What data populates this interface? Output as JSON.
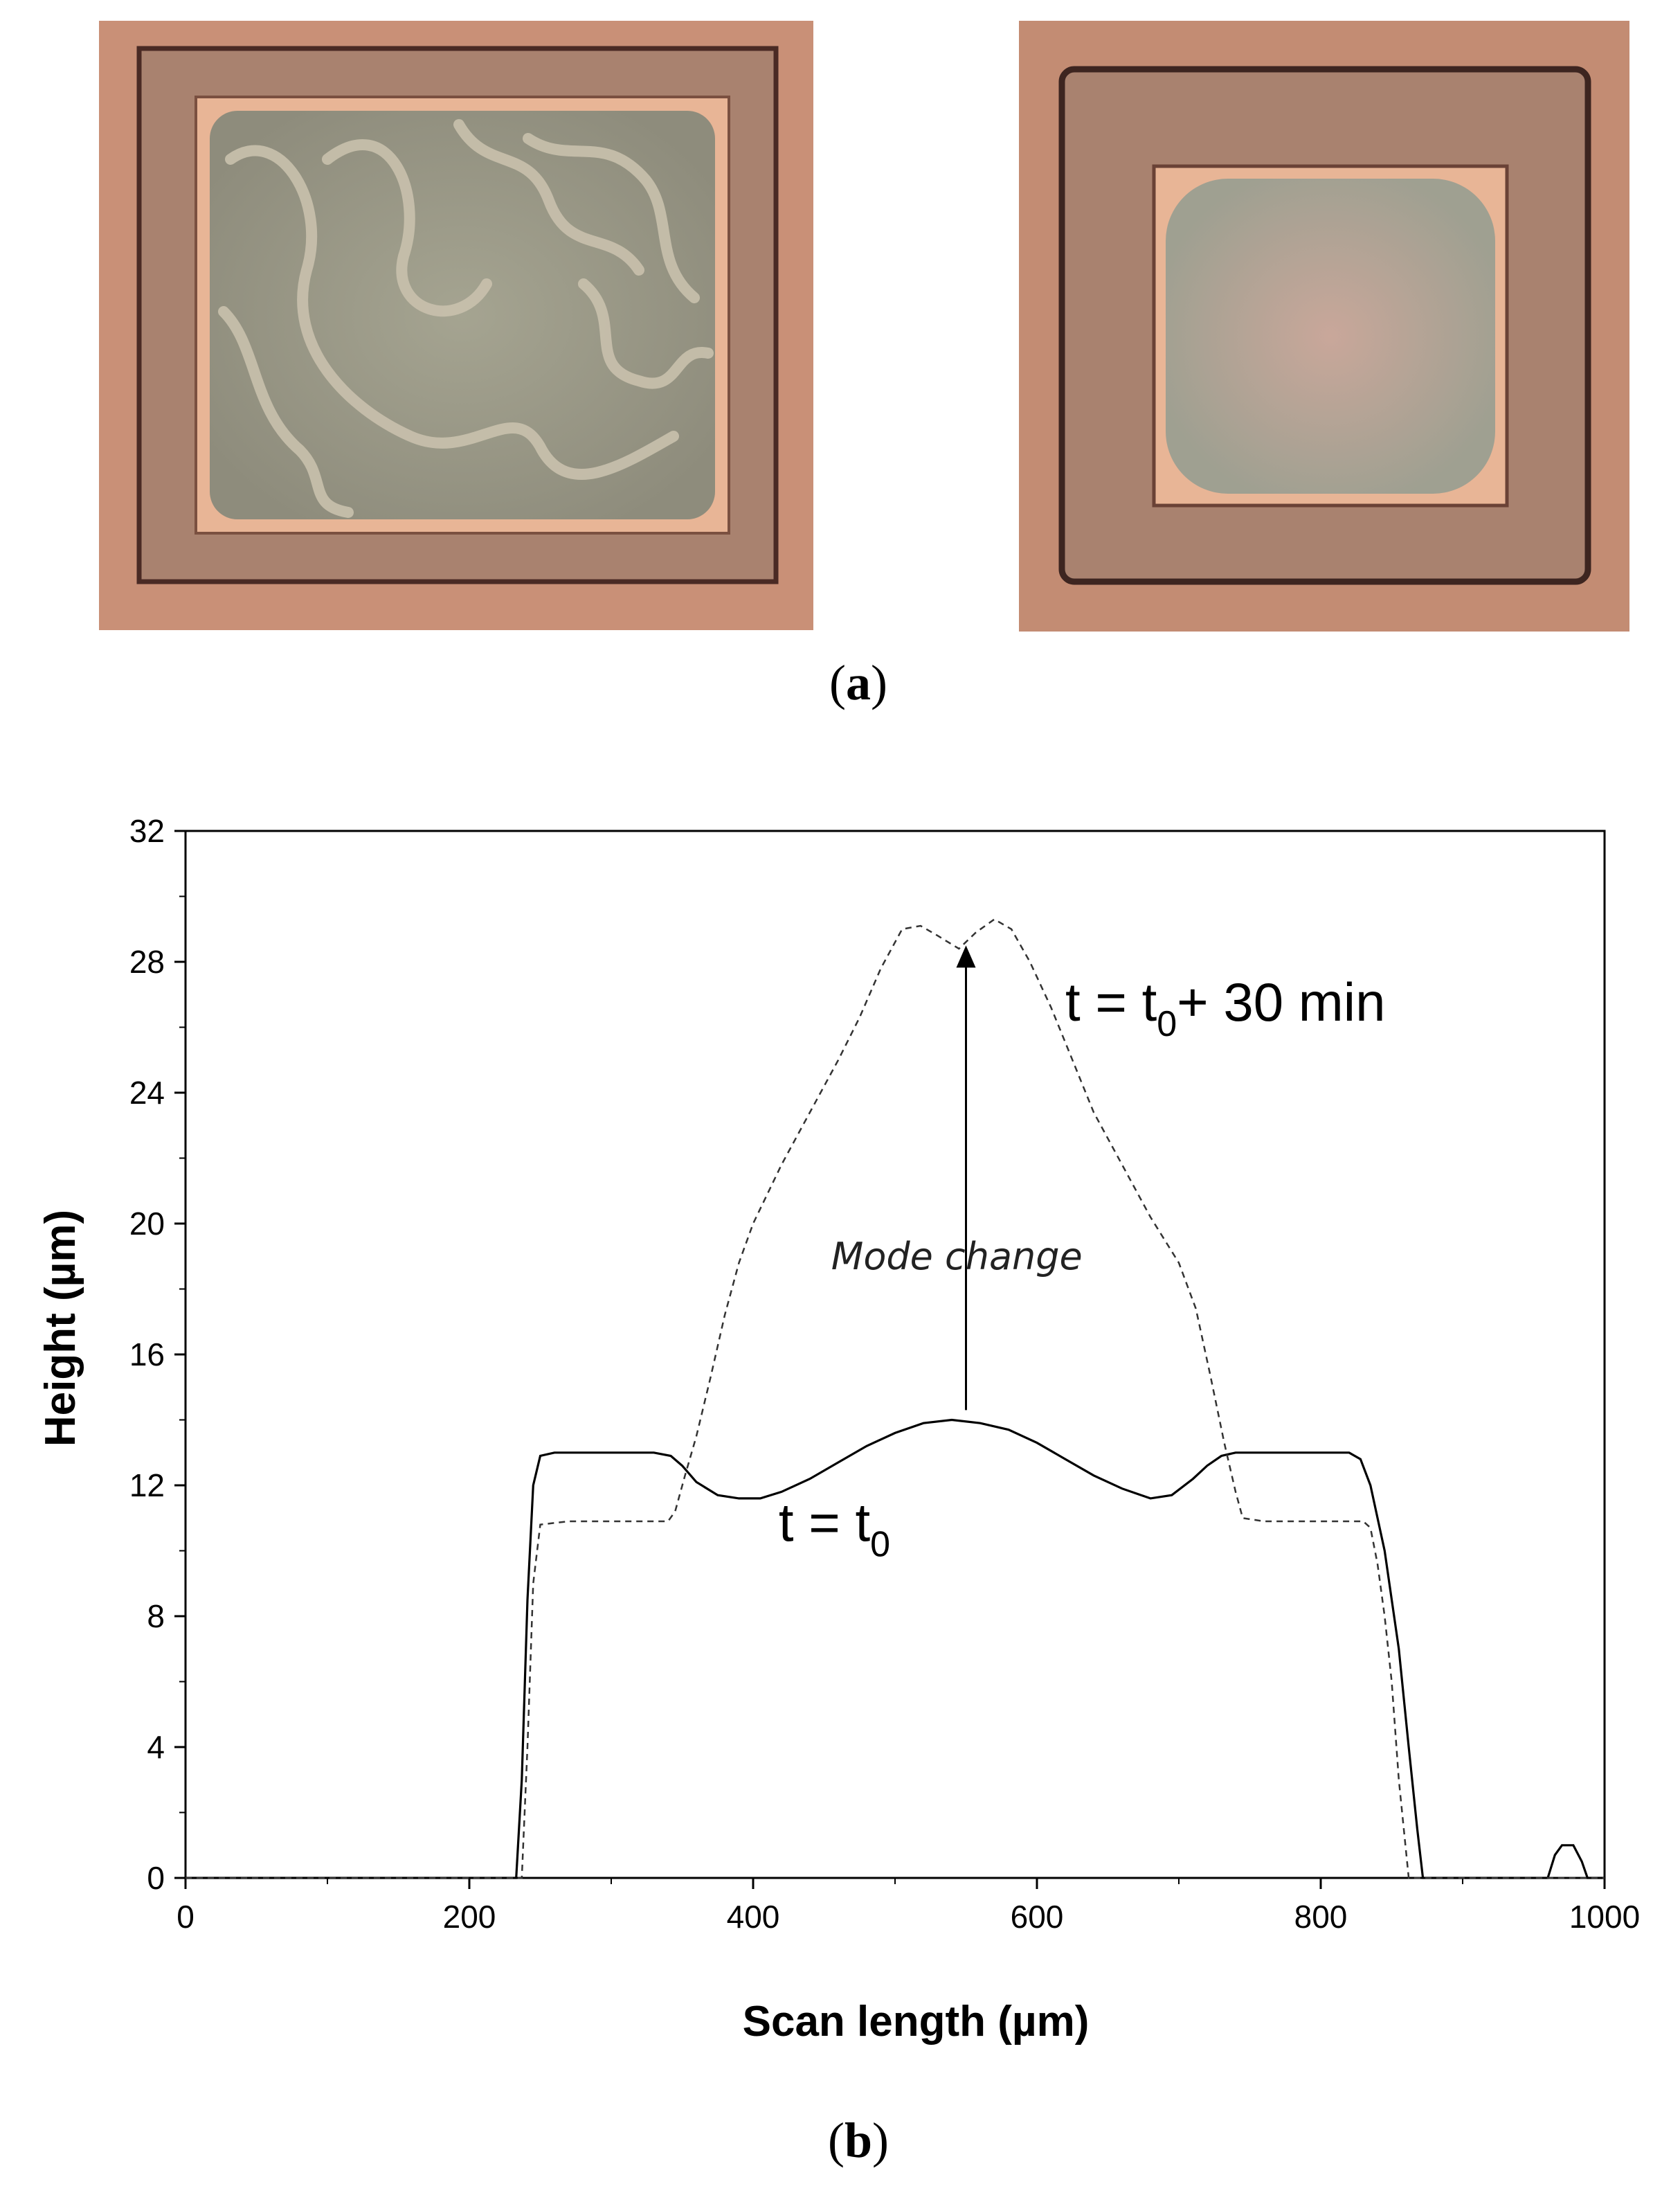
{
  "panels": {
    "a_label": "a",
    "b_label": "b"
  },
  "photos": {
    "colors": {
      "background": "#c99077",
      "frame": "#a9826f",
      "frame_edge": "#4a2a24",
      "inner_rim": "#e8b596",
      "membrane": "#9b9a86",
      "wrinkle": "#c4bca8"
    }
  },
  "chart_data": {
    "type": "line",
    "xlabel": "Scan length (µm)",
    "ylabel": "Height (µm)",
    "xlim": [
      0,
      1000
    ],
    "ylim": [
      0,
      32
    ],
    "xticks": [
      "0",
      "200",
      "400",
      "600",
      "800",
      "1000"
    ],
    "yticks": [
      "0",
      "4",
      "8",
      "12",
      "16",
      "20",
      "24",
      "28",
      "32"
    ],
    "grid": false,
    "series": [
      {
        "label_main": "t = t",
        "label_sub": "0",
        "style": "solid",
        "points": [
          [
            0,
            0
          ],
          [
            233,
            0
          ],
          [
            237,
            3
          ],
          [
            241,
            8.5
          ],
          [
            245,
            12
          ],
          [
            250,
            12.9
          ],
          [
            260,
            13
          ],
          [
            300,
            13
          ],
          [
            330,
            13
          ],
          [
            342,
            12.9
          ],
          [
            350,
            12.6
          ],
          [
            360,
            12.1
          ],
          [
            375,
            11.7
          ],
          [
            390,
            11.6
          ],
          [
            405,
            11.6
          ],
          [
            420,
            11.8
          ],
          [
            440,
            12.2
          ],
          [
            460,
            12.7
          ],
          [
            480,
            13.2
          ],
          [
            500,
            13.6
          ],
          [
            520,
            13.9
          ],
          [
            540,
            14
          ],
          [
            560,
            13.9
          ],
          [
            580,
            13.7
          ],
          [
            600,
            13.3
          ],
          [
            620,
            12.8
          ],
          [
            640,
            12.3
          ],
          [
            660,
            11.9
          ],
          [
            680,
            11.6
          ],
          [
            695,
            11.7
          ],
          [
            710,
            12.2
          ],
          [
            720,
            12.6
          ],
          [
            730,
            12.9
          ],
          [
            740,
            13
          ],
          [
            800,
            13
          ],
          [
            820,
            13
          ],
          [
            828,
            12.8
          ],
          [
            835,
            12
          ],
          [
            845,
            10
          ],
          [
            855,
            7
          ],
          [
            862,
            4
          ],
          [
            868,
            1.5
          ],
          [
            872,
            0
          ],
          [
            960,
            0
          ],
          [
            965,
            0.7
          ],
          [
            970,
            1
          ],
          [
            978,
            1
          ],
          [
            984,
            0.5
          ],
          [
            988,
            0
          ],
          [
            1000,
            0
          ]
        ]
      },
      {
        "label_main": "t = t",
        "label_sub": "0",
        "label_suffix": "+ 30 min",
        "style": "dashed",
        "points": [
          [
            0,
            0
          ],
          [
            237,
            0
          ],
          [
            241,
            4
          ],
          [
            245,
            9
          ],
          [
            250,
            10.8
          ],
          [
            270,
            10.9
          ],
          [
            300,
            10.9
          ],
          [
            340,
            10.9
          ],
          [
            345,
            11.2
          ],
          [
            352,
            12.3
          ],
          [
            360,
            13.5
          ],
          [
            370,
            15.3
          ],
          [
            380,
            17.2
          ],
          [
            390,
            18.8
          ],
          [
            400,
            20
          ],
          [
            420,
            21.8
          ],
          [
            440,
            23.4
          ],
          [
            460,
            25
          ],
          [
            475,
            26.3
          ],
          [
            490,
            27.8
          ],
          [
            505,
            29
          ],
          [
            518,
            29.1
          ],
          [
            530,
            28.8
          ],
          [
            545,
            28.4
          ],
          [
            557,
            28.9
          ],
          [
            570,
            29.3
          ],
          [
            582,
            29
          ],
          [
            595,
            28
          ],
          [
            610,
            26.6
          ],
          [
            625,
            25
          ],
          [
            640,
            23.4
          ],
          [
            660,
            21.8
          ],
          [
            680,
            20.2
          ],
          [
            700,
            18.8
          ],
          [
            712,
            17.4
          ],
          [
            722,
            15.4
          ],
          [
            732,
            13.3
          ],
          [
            740,
            11.8
          ],
          [
            745,
            11
          ],
          [
            760,
            10.9
          ],
          [
            800,
            10.9
          ],
          [
            830,
            10.9
          ],
          [
            835,
            10.7
          ],
          [
            840,
            9.6
          ],
          [
            845,
            8
          ],
          [
            850,
            6
          ],
          [
            855,
            3
          ],
          [
            862,
            0
          ],
          [
            1000,
            0
          ]
        ]
      }
    ],
    "annotations": [
      {
        "text": "Mode change",
        "arrow_from": [
          550,
          14.3
        ],
        "arrow_to": [
          550,
          28.5
        ]
      }
    ]
  }
}
